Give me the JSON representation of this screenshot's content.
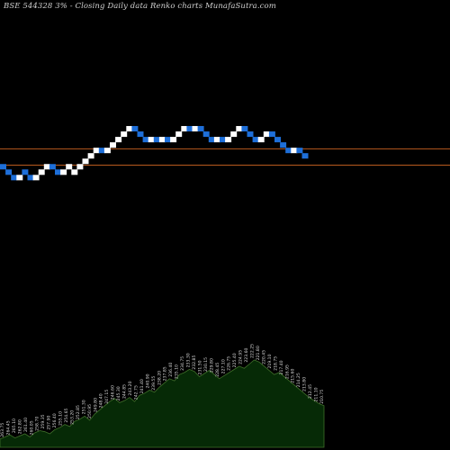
{
  "chart_data": {
    "type": "renko",
    "title": "BSE 544328  3% -  Closing Daily data  Renko  charts MunafaSutra.com",
    "colors": {
      "background": "#000000",
      "up_brick": "#ffffff",
      "down_brick": "#1e6fd9",
      "reference_line": "#b85a1e",
      "volume_fill": "#062a06",
      "volume_stroke": "#3f6f2a",
      "label": "#d8d8d8"
    },
    "price_range": [
      190,
      268
    ],
    "reference_lines": [
      245.02,
      233.26
    ],
    "bricks": [
      {
        "close": 230.12,
        "dir": "down"
      },
      {
        "close": 226.2,
        "dir": "down"
      },
      {
        "close": 222.28,
        "dir": "down"
      },
      {
        "close": 226.2,
        "dir": "up"
      },
      {
        "close": 226.2,
        "dir": "down"
      },
      {
        "close": 222.28,
        "dir": "down"
      },
      {
        "close": 226.2,
        "dir": "up"
      },
      {
        "close": 230.12,
        "dir": "up"
      },
      {
        "close": 234.04,
        "dir": "up"
      },
      {
        "close": 230.12,
        "dir": "down"
      },
      {
        "close": 226.2,
        "dir": "down"
      },
      {
        "close": 230.12,
        "dir": "up"
      },
      {
        "close": 234.04,
        "dir": "up"
      },
      {
        "close": 230.12,
        "dir": "up"
      },
      {
        "close": 234.04,
        "dir": "up"
      },
      {
        "close": 237.96,
        "dir": "up"
      },
      {
        "close": 241.88,
        "dir": "up"
      },
      {
        "close": 245.8,
        "dir": "up"
      },
      {
        "close": 241.88,
        "dir": "down"
      },
      {
        "close": 245.8,
        "dir": "up"
      },
      {
        "close": 249.72,
        "dir": "up"
      },
      {
        "close": 253.64,
        "dir": "up"
      },
      {
        "close": 257.56,
        "dir": "up"
      },
      {
        "close": 261.48,
        "dir": "up"
      },
      {
        "close": 257.56,
        "dir": "down"
      },
      {
        "close": 253.64,
        "dir": "down"
      },
      {
        "close": 249.72,
        "dir": "down"
      },
      {
        "close": 253.64,
        "dir": "up"
      },
      {
        "close": 249.72,
        "dir": "down"
      },
      {
        "close": 253.64,
        "dir": "up"
      },
      {
        "close": 249.72,
        "dir": "down"
      },
      {
        "close": 253.64,
        "dir": "up"
      },
      {
        "close": 257.56,
        "dir": "up"
      },
      {
        "close": 261.48,
        "dir": "up"
      },
      {
        "close": 257.56,
        "dir": "down"
      },
      {
        "close": 261.48,
        "dir": "up"
      },
      {
        "close": 257.56,
        "dir": "down"
      },
      {
        "close": 253.64,
        "dir": "down"
      },
      {
        "close": 249.72,
        "dir": "down"
      },
      {
        "close": 253.64,
        "dir": "up"
      },
      {
        "close": 249.72,
        "dir": "down"
      },
      {
        "close": 253.64,
        "dir": "up"
      },
      {
        "close": 257.56,
        "dir": "up"
      },
      {
        "close": 261.48,
        "dir": "up"
      },
      {
        "close": 257.56,
        "dir": "down"
      },
      {
        "close": 253.64,
        "dir": "down"
      },
      {
        "close": 249.72,
        "dir": "down"
      },
      {
        "close": 253.64,
        "dir": "up"
      },
      {
        "close": 257.56,
        "dir": "up"
      },
      {
        "close": 253.64,
        "dir": "down"
      },
      {
        "close": 249.72,
        "dir": "down"
      },
      {
        "close": 245.8,
        "dir": "down"
      },
      {
        "close": 241.88,
        "dir": "down"
      },
      {
        "close": 245.8,
        "dir": "up"
      },
      {
        "close": 241.88,
        "dir": "down"
      },
      {
        "close": 237.96,
        "dir": "down"
      }
    ],
    "volume": [
      8,
      10,
      12,
      9,
      11,
      13,
      10,
      14,
      16,
      15,
      13,
      17,
      19,
      22,
      20,
      25,
      27,
      30,
      26,
      32,
      36,
      40,
      44,
      47,
      43,
      45,
      48,
      44,
      50,
      52,
      55,
      53,
      58,
      62,
      66,
      64,
      70,
      72,
      75,
      73,
      68,
      71,
      74,
      70,
      66,
      69,
      72,
      75,
      78,
      76,
      80,
      84,
      82,
      78,
      74,
      70,
      72,
      68,
      64,
      60,
      56,
      52,
      48,
      45,
      42,
      40
    ],
    "price_labels": [
      "263.75",
      "264.45",
      "265.10",
      "262.80",
      "261.40",
      "260.05",
      "258.70",
      "259.35",
      "257.90",
      "256.40",
      "255.10",
      "254.65",
      "253.20",
      "252.85",
      "251.30",
      "250.95",
      "249.80",
      "248.40",
      "247.15",
      "246.60",
      "245.30",
      "244.85",
      "243.20",
      "242.75",
      "241.40",
      "240.90",
      "239.55",
      "238.20",
      "237.85",
      "236.40",
      "235.10",
      "234.75",
      "233.30",
      "232.85",
      "231.50",
      "230.15",
      "229.80",
      "228.45",
      "227.10",
      "226.75",
      "225.40",
      "224.95",
      "223.60",
      "222.25",
      "221.80",
      "220.45",
      "219.10",
      "218.75",
      "217.40",
      "216.95",
      "215.60",
      "214.25",
      "213.80",
      "212.45",
      "211.10",
      "210.75"
    ]
  }
}
